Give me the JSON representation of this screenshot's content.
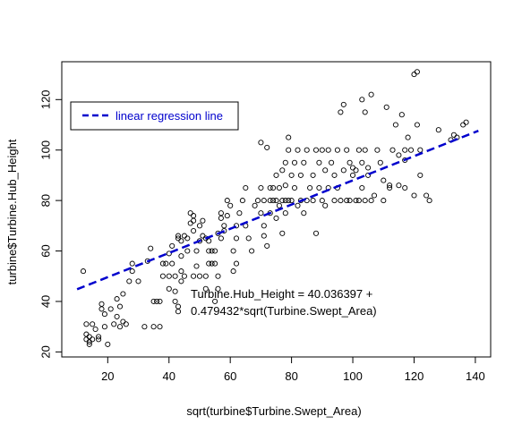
{
  "chart_data": {
    "type": "scatter",
    "title": "",
    "xlabel": "sqrt(turbine$Turbine.Swept_Area)",
    "ylabel": "turbine$Turbine.Hub_Height",
    "xlim": [
      5,
      145
    ],
    "ylim": [
      18,
      135
    ],
    "x_ticks": [
      20,
      40,
      60,
      80,
      100,
      120,
      140
    ],
    "y_ticks": [
      20,
      40,
      60,
      80,
      100,
      120
    ],
    "grid": false,
    "legend": {
      "position": "top-left",
      "entries": [
        {
          "label": "linear regression line",
          "color": "#0000cd",
          "style": "dashed"
        }
      ]
    },
    "regression": {
      "intercept": 40.036397,
      "slope": 0.479432,
      "x_range": [
        10,
        141
      ],
      "color": "#0000cd"
    },
    "annotation": {
      "line1": "Turbine.Hub_Height = 40.036397 +",
      "line2": "0.479432*sqrt(Turbine.Swept_Area)"
    },
    "point_color": "#000000",
    "points": [
      [
        12,
        52
      ],
      [
        13,
        31
      ],
      [
        13,
        27
      ],
      [
        13,
        25
      ],
      [
        14,
        24
      ],
      [
        14,
        26
      ],
      [
        14,
        23
      ],
      [
        15,
        25
      ],
      [
        15,
        31
      ],
      [
        16,
        29
      ],
      [
        17,
        26
      ],
      [
        17,
        25
      ],
      [
        18,
        37
      ],
      [
        18,
        39
      ],
      [
        19,
        35
      ],
      [
        19,
        30
      ],
      [
        20,
        23
      ],
      [
        21,
        37
      ],
      [
        22,
        31
      ],
      [
        23,
        41
      ],
      [
        23,
        34
      ],
      [
        24,
        38
      ],
      [
        24,
        30
      ],
      [
        25,
        43
      ],
      [
        25,
        32
      ],
      [
        26,
        31
      ],
      [
        27,
        48
      ],
      [
        28,
        55
      ],
      [
        28,
        52
      ],
      [
        30,
        48
      ],
      [
        32,
        30
      ],
      [
        33,
        56
      ],
      [
        34,
        61
      ],
      [
        35,
        40
      ],
      [
        35,
        30
      ],
      [
        36,
        40
      ],
      [
        37,
        40
      ],
      [
        37,
        30
      ],
      [
        38,
        50
      ],
      [
        38,
        55
      ],
      [
        39,
        55
      ],
      [
        40,
        50
      ],
      [
        40,
        59
      ],
      [
        40,
        45
      ],
      [
        41,
        62
      ],
      [
        41,
        55
      ],
      [
        42,
        50
      ],
      [
        42,
        44
      ],
      [
        42,
        40
      ],
      [
        43,
        38
      ],
      [
        43,
        36
      ],
      [
        43,
        66
      ],
      [
        43,
        65
      ],
      [
        44,
        58
      ],
      [
        44,
        52
      ],
      [
        44,
        48
      ],
      [
        44,
        64
      ],
      [
        45,
        50
      ],
      [
        45,
        66
      ],
      [
        46,
        60
      ],
      [
        46,
        65
      ],
      [
        47,
        71
      ],
      [
        47,
        75
      ],
      [
        48,
        72
      ],
      [
        48,
        74
      ],
      [
        48,
        68
      ],
      [
        48,
        50
      ],
      [
        49,
        60
      ],
      [
        49,
        54
      ],
      [
        50,
        50
      ],
      [
        50,
        64
      ],
      [
        50,
        70
      ],
      [
        51,
        72
      ],
      [
        51,
        66
      ],
      [
        52,
        65
      ],
      [
        52,
        50
      ],
      [
        52,
        45
      ],
      [
        53,
        55
      ],
      [
        53,
        60
      ],
      [
        53,
        64
      ],
      [
        54,
        60
      ],
      [
        54,
        55
      ],
      [
        55,
        60
      ],
      [
        55,
        40
      ],
      [
        55,
        55
      ],
      [
        56,
        50
      ],
      [
        56,
        45
      ],
      [
        56,
        67
      ],
      [
        57,
        73
      ],
      [
        57,
        75
      ],
      [
        57,
        65
      ],
      [
        58,
        68
      ],
      [
        58,
        70
      ],
      [
        59,
        74
      ],
      [
        59,
        80
      ],
      [
        60,
        78
      ],
      [
        61,
        52
      ],
      [
        61,
        60
      ],
      [
        62,
        55
      ],
      [
        62,
        65
      ],
      [
        62,
        70
      ],
      [
        63,
        75
      ],
      [
        64,
        80
      ],
      [
        65,
        85
      ],
      [
        65,
        70
      ],
      [
        66,
        65
      ],
      [
        67,
        60
      ],
      [
        68,
        78
      ],
      [
        69,
        80
      ],
      [
        70,
        75
      ],
      [
        70,
        85
      ],
      [
        70,
        103
      ],
      [
        71,
        80
      ],
      [
        71,
        66
      ],
      [
        71,
        70
      ],
      [
        72,
        62
      ],
      [
        72,
        101
      ],
      [
        73,
        80
      ],
      [
        73,
        85
      ],
      [
        73,
        75
      ],
      [
        74,
        80
      ],
      [
        74,
        85
      ],
      [
        75,
        73
      ],
      [
        75,
        90
      ],
      [
        75,
        80
      ],
      [
        76,
        78
      ],
      [
        76,
        85
      ],
      [
        77,
        80
      ],
      [
        77,
        92
      ],
      [
        77,
        67
      ],
      [
        78,
        95
      ],
      [
        78,
        80
      ],
      [
        78,
        75
      ],
      [
        78,
        86
      ],
      [
        79,
        80
      ],
      [
        79,
        100
      ],
      [
        79,
        105
      ],
      [
        80,
        90
      ],
      [
        80,
        80
      ],
      [
        81,
        95
      ],
      [
        81,
        85
      ],
      [
        82,
        78
      ],
      [
        82,
        100
      ],
      [
        83,
        80
      ],
      [
        83,
        90
      ],
      [
        84,
        95
      ],
      [
        84,
        75
      ],
      [
        85,
        80
      ],
      [
        85,
        100
      ],
      [
        86,
        85
      ],
      [
        87,
        90
      ],
      [
        87,
        80
      ],
      [
        88,
        100
      ],
      [
        88,
        67
      ],
      [
        89,
        95
      ],
      [
        89,
        85
      ],
      [
        90,
        80
      ],
      [
        90,
        100
      ],
      [
        91,
        92
      ],
      [
        91,
        78
      ],
      [
        92,
        85
      ],
      [
        92,
        100
      ],
      [
        93,
        95
      ],
      [
        94,
        80
      ],
      [
        94,
        90
      ],
      [
        95,
        85
      ],
      [
        95,
        100
      ],
      [
        96,
        115
      ],
      [
        96,
        80
      ],
      [
        97,
        92
      ],
      [
        97,
        118
      ],
      [
        98,
        80
      ],
      [
        98,
        100
      ],
      [
        99,
        95
      ],
      [
        99,
        80
      ],
      [
        100,
        93
      ],
      [
        100,
        90
      ],
      [
        101,
        92
      ],
      [
        101,
        80
      ],
      [
        102,
        100
      ],
      [
        102,
        80
      ],
      [
        103,
        95
      ],
      [
        103,
        85
      ],
      [
        103,
        120
      ],
      [
        104,
        100
      ],
      [
        104,
        80
      ],
      [
        104,
        115
      ],
      [
        105,
        93
      ],
      [
        105,
        90
      ],
      [
        106,
        122
      ],
      [
        106,
        80
      ],
      [
        107,
        82
      ],
      [
        108,
        100
      ],
      [
        109,
        95
      ],
      [
        110,
        80
      ],
      [
        110,
        88
      ],
      [
        111,
        117
      ],
      [
        112,
        86
      ],
      [
        112,
        85
      ],
      [
        113,
        100
      ],
      [
        114,
        110
      ],
      [
        115,
        86
      ],
      [
        115,
        98
      ],
      [
        116,
        114
      ],
      [
        117,
        96
      ],
      [
        117,
        85
      ],
      [
        117,
        100
      ],
      [
        118,
        105
      ],
      [
        119,
        100
      ],
      [
        120,
        130
      ],
      [
        120,
        82
      ],
      [
        121,
        131
      ],
      [
        121,
        110
      ],
      [
        122,
        90
      ],
      [
        122,
        100
      ],
      [
        124,
        82
      ],
      [
        125,
        80
      ],
      [
        128,
        108
      ],
      [
        132,
        104
      ],
      [
        133,
        106
      ],
      [
        134,
        105
      ],
      [
        136,
        110
      ],
      [
        137,
        111
      ]
    ]
  }
}
